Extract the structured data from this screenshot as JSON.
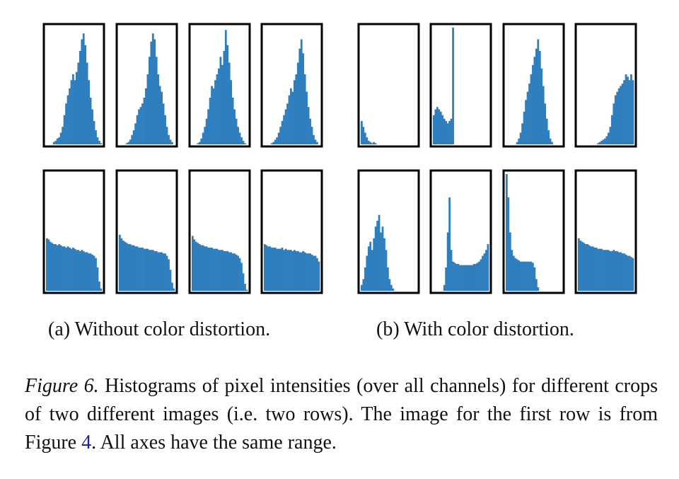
{
  "subfigures": [
    {
      "label": "(a) Without color distortion."
    },
    {
      "label": "(b) With color distortion."
    }
  ],
  "caption": {
    "label": "Figure 6.",
    "text_before_ref": " Histograms of pixel intensities (over all channels) for different crops of two different images (i.e. two rows). The image for the first row is from Figure ",
    "ref": "4",
    "text_after_ref": ". All axes have the same range."
  },
  "colors": {
    "bar_fill": "#2f7fbf",
    "frame": "#000000"
  },
  "chart_data": [
    {
      "type": "bar",
      "panel": "a",
      "row": 1,
      "col": 1,
      "values": [
        0,
        0,
        0,
        0,
        0.02,
        0.03,
        0.05,
        0.06,
        0.1,
        0.15,
        0.25,
        0.35,
        0.42,
        0.48,
        0.55,
        0.6,
        0.55,
        0.62,
        0.7,
        0.8,
        0.9,
        0.95,
        0.85,
        0.7,
        0.55,
        0.4,
        0.3,
        0.2,
        0.12,
        0.06,
        0.03,
        0.01
      ]
    },
    {
      "type": "bar",
      "panel": "a",
      "row": 1,
      "col": 2,
      "values": [
        0,
        0,
        0,
        0,
        0.01,
        0.02,
        0.04,
        0.08,
        0.12,
        0.18,
        0.25,
        0.3,
        0.32,
        0.35,
        0.4,
        0.48,
        0.6,
        0.75,
        0.88,
        0.95,
        0.9,
        0.75,
        0.6,
        0.5,
        0.45,
        0.35,
        0.25,
        0.15,
        0.08,
        0.04,
        0.02,
        0
      ]
    },
    {
      "type": "bar",
      "panel": "a",
      "row": 1,
      "col": 3,
      "values": [
        0,
        0,
        0,
        0.01,
        0.02,
        0.05,
        0.1,
        0.15,
        0.22,
        0.3,
        0.4,
        0.5,
        0.48,
        0.55,
        0.6,
        0.65,
        0.75,
        0.68,
        0.8,
        0.98,
        0.85,
        0.7,
        0.55,
        0.4,
        0.3,
        0.22,
        0.15,
        0.1,
        0.06,
        0.03,
        0.01,
        0
      ]
    },
    {
      "type": "bar",
      "panel": "a",
      "row": 1,
      "col": 4,
      "values": [
        0,
        0,
        0,
        0,
        0.01,
        0.02,
        0.04,
        0.06,
        0.1,
        0.15,
        0.2,
        0.25,
        0.3,
        0.35,
        0.42,
        0.48,
        0.45,
        0.55,
        0.6,
        0.7,
        0.82,
        0.9,
        0.78,
        0.6,
        0.45,
        0.32,
        0.22,
        0.15,
        0.08,
        0.04,
        0.02,
        0
      ]
    },
    {
      "type": "bar",
      "panel": "b",
      "row": 1,
      "col": 1,
      "values": [
        0.2,
        0.15,
        0.1,
        0.06,
        0.03,
        0.02,
        0.01,
        0.02,
        0.01,
        0,
        0,
        0,
        0,
        0,
        0,
        0,
        0,
        0,
        0,
        0,
        0,
        0,
        0,
        0,
        0,
        0,
        0,
        0,
        0,
        0,
        0,
        0
      ]
    },
    {
      "type": "bar",
      "panel": "b",
      "row": 1,
      "col": 2,
      "values": [
        0.25,
        0.3,
        0.32,
        0.3,
        0.28,
        0.25,
        0.22,
        0.2,
        0.18,
        0.2,
        0.22,
        1.0,
        0,
        0,
        0,
        0,
        0,
        0,
        0,
        0,
        0,
        0,
        0,
        0,
        0,
        0,
        0,
        0,
        0,
        0,
        0,
        0
      ]
    },
    {
      "type": "bar",
      "panel": "b",
      "row": 1,
      "col": 3,
      "values": [
        0,
        0,
        0,
        0,
        0,
        0,
        0.02,
        0.05,
        0.1,
        0.18,
        0.28,
        0.38,
        0.45,
        0.52,
        0.6,
        0.68,
        0.75,
        0.82,
        0.9,
        0.8,
        0.65,
        0.5,
        0.35,
        0.22,
        0.12,
        0.05,
        0.02,
        0,
        0,
        0,
        0,
        0
      ]
    },
    {
      "type": "bar",
      "panel": "b",
      "row": 1,
      "col": 4,
      "values": [
        0,
        0,
        0,
        0,
        0,
        0,
        0,
        0,
        0,
        0,
        0,
        0.01,
        0.02,
        0.03,
        0.04,
        0.05,
        0.07,
        0.1,
        0.15,
        0.25,
        0.35,
        0.42,
        0.45,
        0.48,
        0.5,
        0.52,
        0.55,
        0.6,
        0.58,
        0.55,
        0.6,
        0.55
      ]
    },
    {
      "type": "bar",
      "panel": "a",
      "row": 2,
      "col": 1,
      "values": [
        0.45,
        0.44,
        0.42,
        0.41,
        0.4,
        0.4,
        0.39,
        0.4,
        0.39,
        0.38,
        0.38,
        0.37,
        0.38,
        0.37,
        0.36,
        0.37,
        0.36,
        0.35,
        0.35,
        0.34,
        0.35,
        0.34,
        0.33,
        0.33,
        0.32,
        0.32,
        0.31,
        0.3,
        0.28,
        0.2,
        0.08,
        0.02
      ]
    },
    {
      "type": "bar",
      "panel": "a",
      "row": 2,
      "col": 2,
      "values": [
        0.48,
        0.45,
        0.43,
        0.42,
        0.41,
        0.4,
        0.4,
        0.39,
        0.39,
        0.38,
        0.38,
        0.37,
        0.37,
        0.37,
        0.36,
        0.36,
        0.36,
        0.35,
        0.35,
        0.35,
        0.34,
        0.34,
        0.33,
        0.33,
        0.33,
        0.32,
        0.32,
        0.3,
        0.27,
        0.18,
        0.07,
        0.02
      ]
    },
    {
      "type": "bar",
      "panel": "a",
      "row": 2,
      "col": 3,
      "values": [
        0.47,
        0.44,
        0.42,
        0.41,
        0.4,
        0.39,
        0.39,
        0.38,
        0.38,
        0.37,
        0.37,
        0.37,
        0.36,
        0.36,
        0.36,
        0.35,
        0.35,
        0.35,
        0.34,
        0.34,
        0.34,
        0.33,
        0.33,
        0.32,
        0.32,
        0.31,
        0.3,
        0.28,
        0.24,
        0.15,
        0.06,
        0.01
      ]
    },
    {
      "type": "bar",
      "panel": "a",
      "row": 2,
      "col": 4,
      "values": [
        0.4,
        0.39,
        0.38,
        0.38,
        0.37,
        0.37,
        0.37,
        0.36,
        0.36,
        0.36,
        0.37,
        0.35,
        0.36,
        0.35,
        0.35,
        0.35,
        0.34,
        0.35,
        0.34,
        0.34,
        0.33,
        0.33,
        0.34,
        0.33,
        0.32,
        0.32,
        0.32,
        0.31,
        0.3,
        0.3,
        0.28,
        0.25
      ]
    },
    {
      "type": "bar",
      "panel": "b",
      "row": 2,
      "col": 1,
      "values": [
        0.05,
        0.1,
        0.2,
        0.3,
        0.38,
        0.42,
        0.35,
        0.45,
        0.55,
        0.6,
        0.65,
        0.5,
        0.55,
        0.45,
        0.35,
        0.2,
        0.1,
        0.05,
        0.02,
        0,
        0,
        0,
        0,
        0,
        0,
        0,
        0,
        0,
        0,
        0,
        0,
        0
      ]
    },
    {
      "type": "bar",
      "panel": "b",
      "row": 2,
      "col": 2,
      "values": [
        0,
        0,
        0,
        0,
        0,
        0,
        0.05,
        0.2,
        0.5,
        0.8,
        0.35,
        0.25,
        0.24,
        0.23,
        0.23,
        0.22,
        0.22,
        0.22,
        0.22,
        0.22,
        0.22,
        0.22,
        0.22,
        0.23,
        0.23,
        0.24,
        0.25,
        0.27,
        0.3,
        0.32,
        0.35,
        0.4
      ]
    },
    {
      "type": "bar",
      "panel": "b",
      "row": 2,
      "col": 3,
      "values": [
        1.0,
        0.8,
        0.5,
        0.35,
        0.3,
        0.28,
        0.27,
        0.26,
        0.25,
        0.25,
        0.25,
        0.25,
        0.25,
        0.25,
        0.25,
        0.24,
        0.2,
        0.1,
        0.03,
        0,
        0,
        0,
        0,
        0,
        0,
        0,
        0,
        0,
        0,
        0,
        0,
        0
      ]
    },
    {
      "type": "bar",
      "panel": "b",
      "row": 2,
      "col": 4,
      "values": [
        0.45,
        0.43,
        0.42,
        0.41,
        0.4,
        0.4,
        0.39,
        0.38,
        0.38,
        0.37,
        0.37,
        0.36,
        0.36,
        0.36,
        0.35,
        0.35,
        0.35,
        0.35,
        0.34,
        0.34,
        0.35,
        0.34,
        0.34,
        0.33,
        0.33,
        0.32,
        0.32,
        0.31,
        0.3,
        0.3,
        0.29,
        0.28
      ]
    }
  ]
}
